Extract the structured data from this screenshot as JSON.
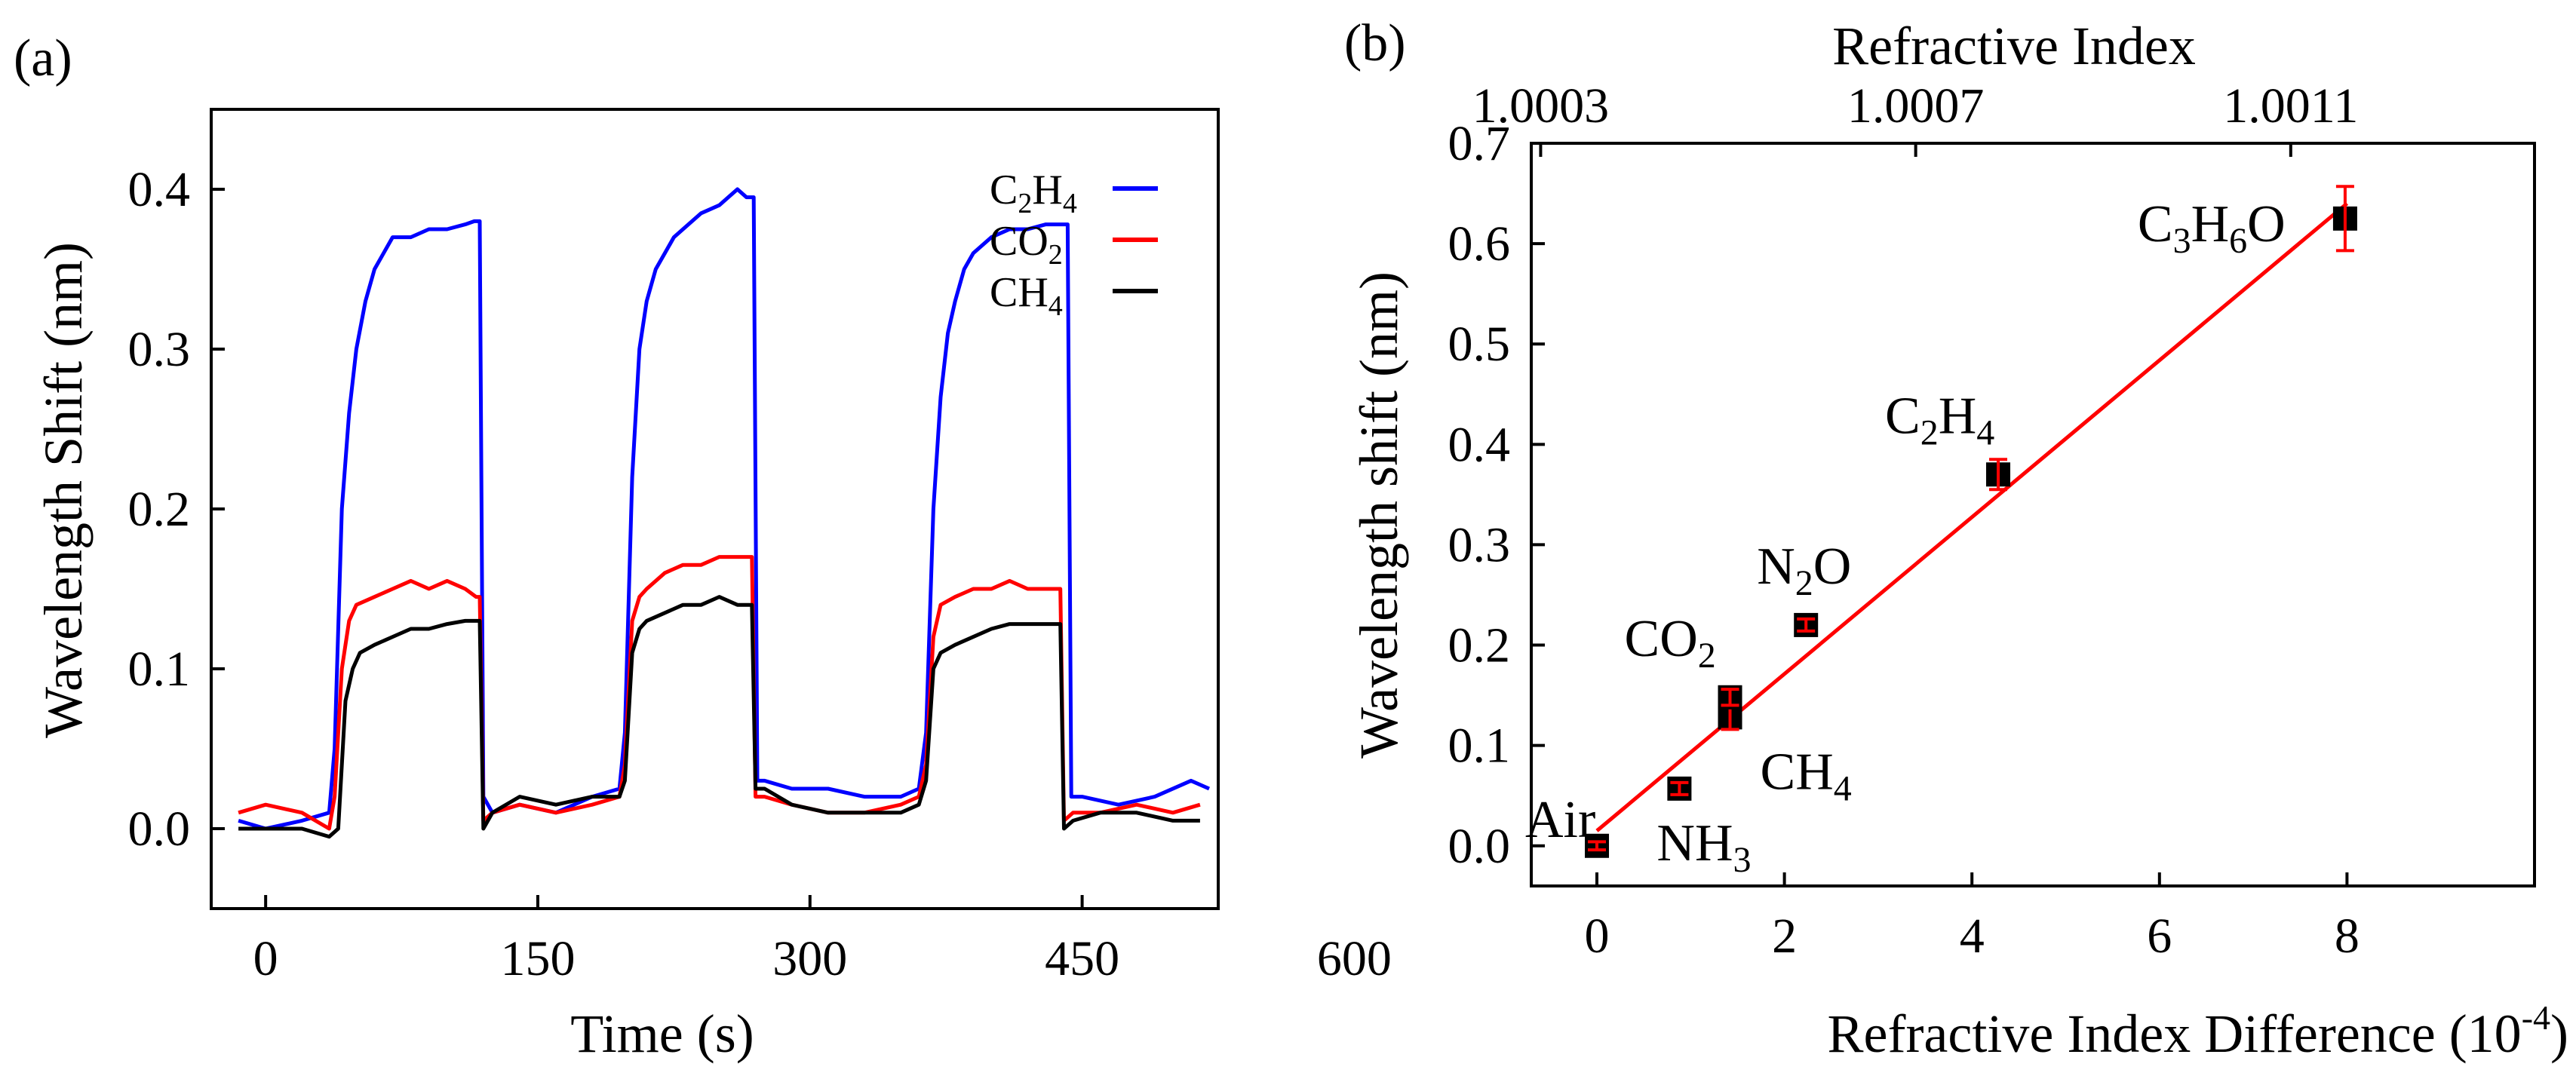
{
  "chart_data": [
    {
      "panel": "(a)",
      "type": "line",
      "title": "",
      "xlabel": "Time (s)",
      "ylabel": "Wavelength Shift (nm)",
      "xlim": [
        -30,
        525
      ],
      "ylim": [
        -0.05,
        0.45
      ],
      "xticks": [
        0,
        150,
        300,
        450,
        600
      ],
      "xtick_labels": [
        "0",
        "150",
        "300",
        "450",
        "600"
      ],
      "yticks": [
        0.0,
        0.1,
        0.2,
        0.3,
        0.4
      ],
      "ytick_labels": [
        "0.0",
        "0.1",
        "0.2",
        "0.3",
        "0.4"
      ],
      "grid": false,
      "legend_position": "top-right",
      "series": [
        {
          "name": "C2H4",
          "label_parts": [
            [
              "C",
              "normal"
            ],
            [
              "2",
              "sub"
            ],
            [
              "H",
              "normal"
            ],
            [
              "4",
              "sub"
            ]
          ],
          "color": "#0000ff",
          "x": [
            -15,
            0,
            20,
            35,
            38,
            42,
            46,
            50,
            55,
            60,
            65,
            70,
            80,
            90,
            100,
            110,
            115,
            118,
            120,
            125,
            140,
            160,
            180,
            195,
            198,
            202,
            206,
            210,
            215,
            220,
            225,
            230,
            240,
            250,
            255,
            260,
            265,
            269,
            271,
            275,
            290,
            310,
            330,
            350,
            360,
            364,
            368,
            372,
            376,
            380,
            385,
            390,
            400,
            410,
            420,
            430,
            438,
            442,
            444,
            450,
            470,
            490,
            510,
            520
          ],
          "y": [
            0.005,
            0.0,
            0.005,
            0.01,
            0.05,
            0.2,
            0.26,
            0.3,
            0.33,
            0.35,
            0.36,
            0.37,
            0.37,
            0.375,
            0.375,
            0.378,
            0.38,
            0.38,
            0.02,
            0.01,
            0.015,
            0.01,
            0.02,
            0.025,
            0.06,
            0.22,
            0.3,
            0.33,
            0.35,
            0.36,
            0.37,
            0.375,
            0.385,
            0.39,
            0.395,
            0.4,
            0.395,
            0.395,
            0.03,
            0.03,
            0.025,
            0.025,
            0.02,
            0.02,
            0.025,
            0.06,
            0.2,
            0.27,
            0.31,
            0.33,
            0.35,
            0.36,
            0.37,
            0.375,
            0.375,
            0.378,
            0.378,
            0.378,
            0.02,
            0.02,
            0.015,
            0.02,
            0.03,
            0.025
          ]
        },
        {
          "name": "CO2",
          "label_parts": [
            [
              "CO",
              "normal"
            ],
            [
              "2",
              "sub"
            ]
          ],
          "color": "#ff0000",
          "x": [
            -15,
            0,
            20,
            35,
            38,
            42,
            46,
            50,
            60,
            70,
            80,
            90,
            100,
            110,
            116,
            118,
            120,
            125,
            140,
            160,
            180,
            195,
            198,
            202,
            206,
            210,
            220,
            230,
            240,
            250,
            260,
            268,
            270,
            275,
            290,
            310,
            330,
            350,
            360,
            364,
            368,
            372,
            380,
            390,
            400,
            410,
            420,
            430,
            436,
            438,
            440,
            445,
            460,
            480,
            500,
            515
          ],
          "y": [
            0.01,
            0.015,
            0.01,
            0.0,
            0.02,
            0.1,
            0.13,
            0.14,
            0.145,
            0.15,
            0.155,
            0.15,
            0.155,
            0.15,
            0.145,
            0.145,
            0.005,
            0.01,
            0.015,
            0.01,
            0.015,
            0.02,
            0.04,
            0.13,
            0.145,
            0.15,
            0.16,
            0.165,
            0.165,
            0.17,
            0.17,
            0.17,
            0.02,
            0.02,
            0.015,
            0.01,
            0.01,
            0.015,
            0.02,
            0.04,
            0.12,
            0.14,
            0.145,
            0.15,
            0.15,
            0.155,
            0.15,
            0.15,
            0.15,
            0.15,
            0.005,
            0.01,
            0.01,
            0.015,
            0.01,
            0.015
          ]
        },
        {
          "name": "CH4",
          "label_parts": [
            [
              "CH",
              "normal"
            ],
            [
              "4",
              "sub"
            ]
          ],
          "color": "#000000",
          "x": [
            -15,
            0,
            20,
            35,
            40,
            44,
            48,
            52,
            60,
            70,
            80,
            90,
            100,
            110,
            116,
            118,
            120,
            125,
            140,
            160,
            180,
            195,
            198,
            202,
            206,
            210,
            220,
            230,
            240,
            250,
            260,
            268,
            270,
            275,
            290,
            310,
            330,
            350,
            360,
            364,
            368,
            372,
            380,
            390,
            400,
            410,
            420,
            430,
            436,
            438,
            440,
            445,
            460,
            480,
            500,
            515
          ],
          "y": [
            0.0,
            0.0,
            0.0,
            -0.005,
            0.0,
            0.08,
            0.1,
            0.11,
            0.115,
            0.12,
            0.125,
            0.125,
            0.128,
            0.13,
            0.13,
            0.13,
            0.0,
            0.01,
            0.02,
            0.015,
            0.02,
            0.02,
            0.03,
            0.11,
            0.125,
            0.13,
            0.135,
            0.14,
            0.14,
            0.145,
            0.14,
            0.14,
            0.025,
            0.025,
            0.015,
            0.01,
            0.01,
            0.01,
            0.015,
            0.03,
            0.1,
            0.11,
            0.115,
            0.12,
            0.125,
            0.128,
            0.128,
            0.128,
            0.128,
            0.128,
            0.0,
            0.005,
            0.01,
            0.01,
            0.005,
            0.005
          ]
        }
      ]
    },
    {
      "panel": "(b)",
      "type": "scatter",
      "title": "",
      "xlabel": "Refractive Index Difference (10",
      "xlabel_sup": "-4",
      "xlabel_tail": ")",
      "ylabel": "Wavelength shift (nm)",
      "top_xlabel": "Refractive Index",
      "xlim": [
        -0.7,
        10.0
      ],
      "ylim": [
        -0.04,
        0.7
      ],
      "xticks": [
        0,
        2,
        4,
        6,
        8
      ],
      "xtick_labels": [
        "0",
        "2",
        "4",
        "6",
        "8"
      ],
      "top_xticks": [
        -0.6,
        3.4,
        7.4
      ],
      "top_xtick_labels": [
        "1.0003",
        "1.0007",
        "1.0011"
      ],
      "yticks": [
        0.0,
        0.1,
        0.2,
        0.3,
        0.4,
        0.5,
        0.6,
        0.7
      ],
      "ytick_labels": [
        "0.0",
        "0.1",
        "0.2",
        "0.3",
        "0.4",
        "0.5",
        "0.6",
        "0.7"
      ],
      "grid": false,
      "marker_color": "#000000",
      "error_color": "#ff0000",
      "points": [
        {
          "name": "Air",
          "x": 0.0,
          "y": 0.0,
          "err": 0.004,
          "label_parts": [
            [
              "Air",
              "normal"
            ]
          ]
        },
        {
          "name": "NH3",
          "x": 0.88,
          "y": 0.057,
          "err": 0.006,
          "label_parts": [
            [
              "NH",
              "normal"
            ],
            [
              "3",
              "sub"
            ]
          ]
        },
        {
          "name": "CH4",
          "x": 1.42,
          "y": 0.128,
          "err": 0.012,
          "label_parts": [
            [
              "CH",
              "normal"
            ],
            [
              "4",
              "sub"
            ]
          ]
        },
        {
          "name": "CO2",
          "x": 1.42,
          "y": 0.148,
          "err": 0.008,
          "label_parts": [
            [
              "CO",
              "normal"
            ],
            [
              "2",
              "sub"
            ]
          ]
        },
        {
          "name": "N2O",
          "x": 2.23,
          "y": 0.22,
          "err": 0.006,
          "label_parts": [
            [
              "N",
              "normal"
            ],
            [
              "2",
              "sub"
            ],
            [
              "O",
              "normal"
            ]
          ]
        },
        {
          "name": "C2H4",
          "x": 4.28,
          "y": 0.37,
          "err": 0.015,
          "label_parts": [
            [
              "C",
              "normal"
            ],
            [
              "2",
              "sub"
            ],
            [
              "H",
              "normal"
            ],
            [
              "4",
              "sub"
            ]
          ]
        },
        {
          "name": "C3H6O",
          "x": 7.98,
          "y": 0.625,
          "err": 0.032,
          "label_parts": [
            [
              "C",
              "normal"
            ],
            [
              "3",
              "sub"
            ],
            [
              "H",
              "normal"
            ],
            [
              "6",
              "sub"
            ],
            [
              "O",
              "normal"
            ]
          ]
        }
      ],
      "fit": {
        "color": "#ff0000",
        "x": [
          0.0,
          8.0
        ],
        "y": [
          0.015,
          0.64
        ]
      }
    }
  ]
}
